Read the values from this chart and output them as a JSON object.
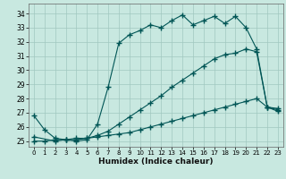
{
  "xlabel": "Humidex (Indice chaleur)",
  "x_ticks": [
    0,
    1,
    2,
    3,
    4,
    5,
    6,
    7,
    8,
    9,
    10,
    11,
    12,
    13,
    14,
    15,
    16,
    17,
    18,
    19,
    20,
    21,
    22,
    23
  ],
  "y_ticks": [
    25,
    26,
    27,
    28,
    29,
    30,
    31,
    32,
    33,
    34
  ],
  "xlim": [
    -0.5,
    23.5
  ],
  "ylim": [
    24.6,
    34.7
  ],
  "bg_color": "#c8e8e0",
  "grid_color": "#a0c8c0",
  "line_color": "#005555",
  "line1_x": [
    0,
    1,
    2,
    3,
    4,
    5,
    6,
    7,
    8,
    9,
    10,
    11,
    12,
    13,
    14,
    15,
    16,
    17,
    18,
    19,
    20,
    21,
    22,
    23
  ],
  "line1_y": [
    26.8,
    25.8,
    25.2,
    25.1,
    25.0,
    25.1,
    26.2,
    28.8,
    31.9,
    32.5,
    32.8,
    33.2,
    33.0,
    33.5,
    33.9,
    33.2,
    33.5,
    33.8,
    33.3,
    33.8,
    33.0,
    31.5,
    27.4,
    27.3
  ],
  "line2_x": [
    0,
    2,
    3,
    4,
    5,
    6,
    7,
    8,
    9,
    10,
    11,
    12,
    13,
    14,
    15,
    16,
    17,
    18,
    19,
    20,
    21,
    22,
    23
  ],
  "line2_y": [
    25.3,
    25.0,
    25.1,
    25.1,
    25.2,
    25.4,
    25.7,
    26.2,
    26.7,
    27.2,
    27.7,
    28.2,
    28.8,
    29.3,
    29.8,
    30.3,
    30.8,
    31.1,
    31.2,
    31.5,
    31.3,
    27.4,
    27.2
  ],
  "line3_x": [
    0,
    1,
    2,
    3,
    4,
    5,
    6,
    7,
    8,
    9,
    10,
    11,
    12,
    13,
    14,
    15,
    16,
    17,
    18,
    19,
    20,
    21,
    22,
    23
  ],
  "line3_y": [
    25.0,
    25.0,
    25.1,
    25.1,
    25.2,
    25.2,
    25.3,
    25.4,
    25.5,
    25.6,
    25.8,
    26.0,
    26.2,
    26.4,
    26.6,
    26.8,
    27.0,
    27.2,
    27.4,
    27.6,
    27.8,
    28.0,
    27.4,
    27.1
  ]
}
